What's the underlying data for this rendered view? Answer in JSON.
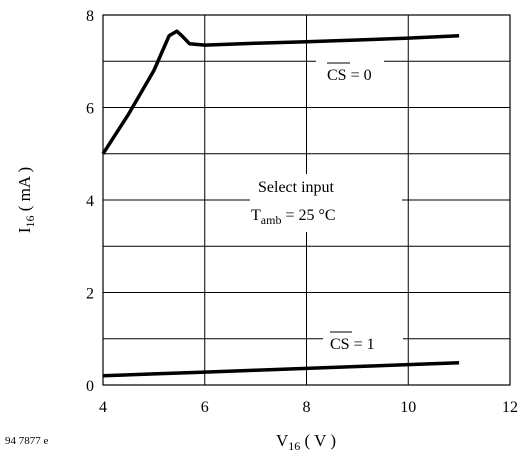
{
  "chart_data": {
    "type": "line",
    "title": "",
    "xlabel": {
      "main": "V",
      "sub": "16",
      "rest": " ( V )"
    },
    "ylabel": {
      "main": "I",
      "sub": "16",
      "rest": " ( mA )"
    },
    "xlim": [
      4,
      12
    ],
    "ylim": [
      0,
      8
    ],
    "xticks": [
      4,
      6,
      8,
      10,
      12
    ],
    "yticks": [
      0,
      2,
      4,
      6,
      8
    ],
    "xtick_labels": [
      "4",
      "6",
      "8",
      "10",
      "12"
    ],
    "ytick_labels": [
      "0",
      "2",
      "4",
      "6",
      "8"
    ],
    "grid": true,
    "series": [
      {
        "name": "CS = 0",
        "x": [
          4.0,
          4.5,
          5.0,
          5.3,
          5.45,
          5.55,
          5.7,
          6.0,
          7.0,
          8.0,
          9.0,
          10.0,
          11.0
        ],
        "y": [
          5.0,
          5.85,
          6.8,
          7.55,
          7.65,
          7.55,
          7.38,
          7.35,
          7.39,
          7.42,
          7.46,
          7.5,
          7.55
        ]
      },
      {
        "name": "CS = 1",
        "x": [
          4.0,
          5.0,
          6.0,
          7.0,
          8.0,
          9.0,
          10.0,
          11.0
        ],
        "y": [
          0.2,
          0.24,
          0.28,
          0.32,
          0.36,
          0.4,
          0.44,
          0.48
        ]
      }
    ],
    "annotations": {
      "cs0": {
        "text": "CS = 0",
        "overlined": "CS",
        "rest": " = 0"
      },
      "cs1": {
        "text": "CS = 1",
        "overlined": "CS",
        "rest": " = 1"
      },
      "condition_line1": "Select input",
      "condition_line2": {
        "main": "T",
        "sub": "amb",
        "rest": " = 25 °C"
      }
    },
    "figure_id": "94 7877 e"
  }
}
